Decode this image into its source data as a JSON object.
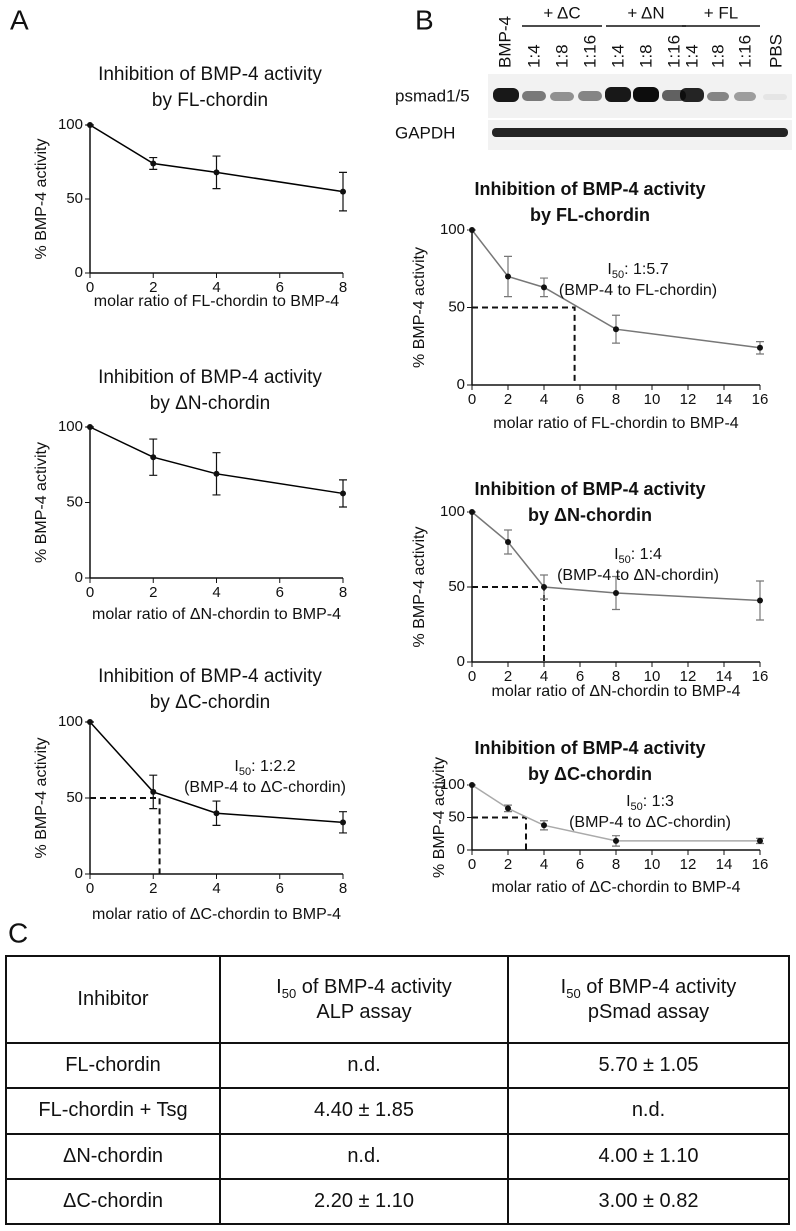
{
  "panels": {
    "a": "A",
    "b": "B",
    "c": "C"
  },
  "blot": {
    "groups": [
      "+ ΔC",
      "+ ΔN",
      "+ FL"
    ],
    "lanes": [
      "BMP-4",
      "1:4",
      "1:8",
      "1:16",
      "1:4",
      "1:8",
      "1:16",
      "1:4",
      "1:8",
      "1:16",
      "PBS"
    ],
    "rows": [
      "psmad1/5",
      "GAPDH"
    ]
  },
  "chart_data": [
    {
      "type": "line",
      "title": [
        "Inhibition of BMP-4 activity",
        "by FL-chordin"
      ],
      "x_label": "molar ratio of FL-chordin to BMP-4",
      "y_label": "% BMP-4 activity",
      "x": [
        0,
        2,
        4,
        8
      ],
      "values": [
        100,
        74,
        68,
        55
      ],
      "errors": [
        0,
        4,
        11,
        13
      ],
      "color": "#000000",
      "xlim": [
        0,
        8
      ],
      "ylim": [
        0,
        100
      ],
      "xticks": [
        0,
        2,
        4,
        6,
        8
      ],
      "yticks": [
        0,
        50,
        100
      ]
    },
    {
      "type": "line",
      "title": [
        "Inhibition of BMP-4 activity",
        "by ΔN-chordin"
      ],
      "x_label": "molar ratio of ΔN-chordin to BMP-4",
      "y_label": "% BMP-4 activity",
      "x": [
        0,
        2,
        4,
        8
      ],
      "values": [
        100,
        80,
        69,
        56
      ],
      "errors": [
        0,
        12,
        14,
        9
      ],
      "color": "#000000",
      "xlim": [
        0,
        8
      ],
      "ylim": [
        0,
        100
      ],
      "xticks": [
        0,
        2,
        4,
        6,
        8
      ],
      "yticks": [
        0,
        50,
        100
      ]
    },
    {
      "type": "line",
      "title": [
        "Inhibition of BMP-4 activity",
        "by ΔC-chordin"
      ],
      "x_label": "molar ratio of ΔC-chordin to BMP-4",
      "y_label": "% BMP-4 activity",
      "x": [
        0,
        2,
        4,
        8
      ],
      "values": [
        100,
        54,
        40,
        34
      ],
      "errors": [
        0,
        11,
        8,
        7
      ],
      "color": "#000000",
      "xlim": [
        0,
        8
      ],
      "ylim": [
        0,
        100
      ],
      "xticks": [
        0,
        2,
        4,
        6,
        8
      ],
      "yticks": [
        0,
        50,
        100
      ],
      "reference": {
        "x": 2.2,
        "y": 50
      },
      "annotation": {
        "prefix": "I",
        "subscript": "50",
        "text": ": 1:2.2",
        "note": "(BMP-4 to ΔC-chordin)"
      }
    },
    {
      "type": "line",
      "title": [
        "Inhibition of BMP-4 activity",
        "by FL-chordin"
      ],
      "x_label": "molar ratio of FL-chordin to BMP-4",
      "y_label": "% BMP-4 activity",
      "x": [
        0,
        2,
        4,
        8,
        16
      ],
      "values": [
        100,
        70,
        63,
        36,
        24
      ],
      "errors": [
        0,
        13,
        6,
        9,
        4
      ],
      "color": "#777777",
      "xlim": [
        0,
        16
      ],
      "ylim": [
        0,
        100
      ],
      "xticks": [
        0,
        2,
        4,
        6,
        8,
        10,
        12,
        14,
        16
      ],
      "yticks": [
        0,
        50,
        100
      ],
      "reference": {
        "x": 5.7,
        "y": 50
      },
      "annotation": {
        "prefix": "I",
        "subscript": "50",
        "text": ": 1:5.7",
        "note": "(BMP-4 to FL-chordin)"
      }
    },
    {
      "type": "line",
      "title": [
        "Inhibition of BMP-4 activity",
        "by ΔN-chordin"
      ],
      "x_label": "molar ratio of ΔN-chordin to BMP-4",
      "y_label": "% BMP-4 activity",
      "x": [
        0,
        2,
        4,
        8,
        16
      ],
      "values": [
        100,
        80,
        50,
        46,
        41
      ],
      "errors": [
        0,
        8,
        8,
        11,
        13
      ],
      "color": "#777777",
      "xlim": [
        0,
        16
      ],
      "ylim": [
        0,
        100
      ],
      "xticks": [
        0,
        2,
        4,
        6,
        8,
        10,
        12,
        14,
        16
      ],
      "yticks": [
        0,
        50,
        100
      ],
      "reference": {
        "x": 4,
        "y": 50
      },
      "annotation": {
        "prefix": "I",
        "subscript": "50",
        "text": ": 1:4",
        "note": "(BMP-4 to ΔN-chordin)"
      }
    },
    {
      "type": "line",
      "title": [
        "Inhibition of BMP-4 activity",
        "by ΔC-chordin"
      ],
      "x_label": "molar ratio of ΔC-chordin to BMP-4",
      "y_label": "% BMP-4 activity",
      "x": [
        0,
        2,
        4,
        8,
        16
      ],
      "values": [
        100,
        64,
        38,
        14,
        14
      ],
      "errors": [
        0,
        5,
        7,
        8,
        4
      ],
      "color": "#aaaaaa",
      "xlim": [
        0,
        16
      ],
      "ylim": [
        0,
        100
      ],
      "xticks": [
        0,
        2,
        4,
        6,
        8,
        10,
        12,
        14,
        16
      ],
      "yticks": [
        0,
        50,
        100
      ],
      "reference": {
        "x": 3,
        "y": 50
      },
      "annotation": {
        "prefix": "I",
        "subscript": "50",
        "text": ": 1:3",
        "note": "(BMP-4 to ΔC-chordin)"
      }
    }
  ],
  "table": {
    "header": [
      {
        "text": "Inhibitor"
      },
      {
        "prefix": "I",
        "subscript": "50",
        "text": " of BMP-4 activity",
        "line2": "ALP assay"
      },
      {
        "prefix": "I",
        "subscript": "50",
        "text": " of BMP-4 activity",
        "line2": "pSmad assay"
      }
    ],
    "rows": [
      [
        "FL-chordin",
        "n.d.",
        "5.70 ± 1.05"
      ],
      [
        "FL-chordin + Tsg",
        "4.40 ± 1.85",
        "n.d."
      ],
      [
        "ΔN-chordin",
        "n.d.",
        "4.00 ± 1.10"
      ],
      [
        "ΔC-chordin",
        "2.20 ± 1.10",
        "3.00 ± 0.82"
      ]
    ]
  }
}
